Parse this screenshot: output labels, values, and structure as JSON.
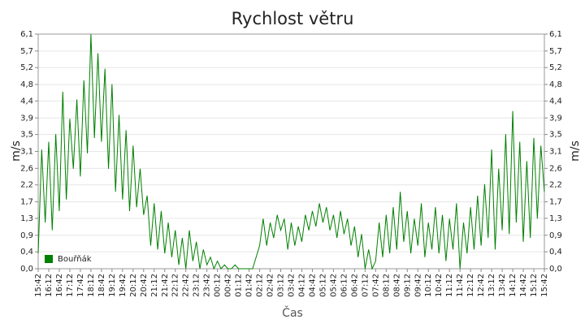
{
  "chart_data": {
    "type": "line",
    "title": "Rychlost větru",
    "x_label": "Čas",
    "y_label": "m/s",
    "categories": [
      "15:42",
      null,
      null,
      "16:12",
      null,
      null,
      "16:42",
      null,
      null,
      "17:12",
      null,
      null,
      "17:42",
      null,
      null,
      "18:12",
      null,
      null,
      "18:42",
      null,
      null,
      "19:12",
      null,
      null,
      "19:42",
      null,
      null,
      "20:12",
      null,
      null,
      "20:42",
      null,
      null,
      "21:12",
      null,
      null,
      "21:42",
      null,
      null,
      "22:12",
      null,
      null,
      "22:42",
      null,
      null,
      "23:12",
      null,
      null,
      "23:42",
      null,
      null,
      "00:12",
      null,
      null,
      "00:42",
      null,
      null,
      "01:12",
      null,
      null,
      "01:42",
      null,
      null,
      "02:12",
      null,
      null,
      "02:42",
      null,
      null,
      "03:12",
      null,
      null,
      "03:42",
      null,
      null,
      "04:12",
      null,
      null,
      "04:42",
      null,
      null,
      "05:12",
      null,
      null,
      "05:42",
      null,
      null,
      "06:12",
      null,
      null,
      "06:42",
      null,
      null,
      "07:12",
      null,
      null,
      "07:42",
      null,
      null,
      "08:12",
      null,
      null,
      "08:42",
      null,
      null,
      "09:12",
      null,
      null,
      "09:42",
      null,
      null,
      "10:12",
      null,
      null,
      "10:42",
      null,
      null,
      "11:12",
      null,
      null,
      "11:42",
      null,
      null,
      "12:12",
      null,
      null,
      "12:42",
      null,
      null,
      "13:12",
      null,
      null,
      "13:42",
      null,
      null,
      "14:12",
      null,
      null,
      "14:42",
      null,
      null,
      "15:12",
      null,
      null,
      "15:42"
    ],
    "series": [
      {
        "name": "Bouřňák",
        "color": "#008000",
        "values": [
          0.4,
          3.1,
          1.2,
          3.3,
          1.0,
          3.5,
          1.5,
          4.6,
          1.8,
          3.9,
          2.6,
          4.4,
          2.4,
          4.9,
          3.0,
          6.1,
          3.4,
          5.6,
          3.3,
          5.2,
          2.6,
          4.8,
          2.0,
          4.0,
          1.8,
          3.6,
          1.5,
          3.2,
          1.6,
          2.6,
          1.4,
          1.9,
          0.6,
          1.7,
          0.5,
          1.5,
          0.4,
          1.2,
          0.3,
          1.0,
          0.1,
          0.8,
          0.0,
          1.0,
          0.2,
          0.7,
          0.0,
          0.5,
          0.1,
          0.3,
          0.0,
          0.2,
          0.0,
          0.1,
          0.0,
          0.0,
          0.1,
          0.0,
          0.0,
          0.0,
          0.0,
          0.0,
          0.3,
          0.6,
          1.3,
          0.6,
          1.2,
          0.8,
          1.4,
          1.0,
          1.3,
          0.5,
          1.2,
          0.6,
          1.1,
          0.7,
          1.4,
          1.0,
          1.5,
          1.1,
          1.7,
          1.2,
          1.6,
          1.0,
          1.4,
          0.8,
          1.5,
          0.9,
          1.3,
          0.6,
          1.1,
          0.3,
          0.9,
          0.0,
          0.5,
          0.0,
          0.2,
          1.2,
          0.3,
          1.4,
          0.4,
          1.6,
          0.5,
          2.0,
          0.7,
          1.5,
          0.4,
          1.3,
          0.6,
          1.7,
          0.3,
          1.2,
          0.5,
          1.6,
          0.4,
          1.4,
          0.2,
          1.3,
          0.5,
          1.7,
          0.0,
          1.2,
          0.4,
          1.6,
          0.5,
          1.9,
          0.6,
          2.2,
          0.8,
          3.1,
          0.5,
          2.6,
          1.0,
          3.5,
          0.9,
          4.1,
          1.2,
          3.3,
          0.7,
          2.8,
          0.8,
          3.4,
          1.3,
          3.2,
          2.0
        ]
      }
    ],
    "ylim": [
      0,
      6.1
    ],
    "yticks": [
      {
        "value": 0,
        "label": "0,0"
      },
      {
        "value": 0.44,
        "label": "0,4"
      },
      {
        "value": 0.87,
        "label": "0,9"
      },
      {
        "value": 1.31,
        "label": "1,3"
      },
      {
        "value": 1.74,
        "label": "1,7"
      },
      {
        "value": 2.18,
        "label": "2,2"
      },
      {
        "value": 2.61,
        "label": "2,6"
      },
      {
        "value": 3.05,
        "label": "3,1"
      },
      {
        "value": 3.49,
        "label": "3,5"
      },
      {
        "value": 3.92,
        "label": "3,9"
      },
      {
        "value": 4.36,
        "label": "4,4"
      },
      {
        "value": 4.79,
        "label": "4,8"
      },
      {
        "value": 5.23,
        "label": "5,2"
      },
      {
        "value": 5.66,
        "label": "5,7"
      },
      {
        "value": 6.1,
        "label": "6,1"
      }
    ],
    "grid": true,
    "legend": "lower left"
  }
}
